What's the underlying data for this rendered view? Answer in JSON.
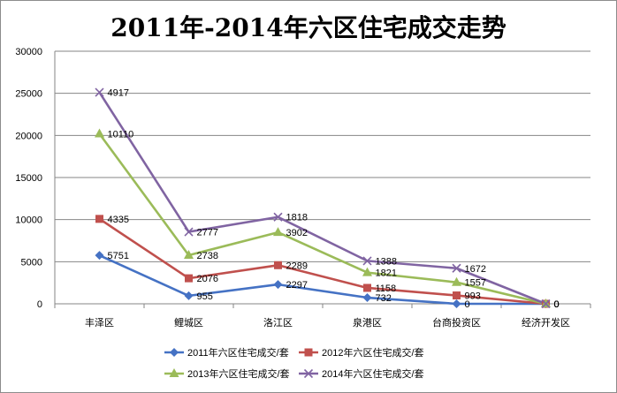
{
  "chart_data": {
    "type": "line",
    "title": "2011年-2014年六区住宅成交走势",
    "categories": [
      "丰泽区",
      "鲤城区",
      "洛江区",
      "泉港区",
      "台商投资区",
      "经济开发区"
    ],
    "stacked": true,
    "ylim": [
      0,
      30000
    ],
    "yticks": [
      0,
      5000,
      10000,
      15000,
      20000,
      25000,
      30000
    ],
    "grid": true,
    "legend_position": "bottom",
    "series": [
      {
        "name": "2011年六区住宅成交/套",
        "color": "#4572c4",
        "marker": "diamond",
        "values": [
          5751,
          955,
          2297,
          732,
          0,
          0
        ],
        "labels": [
          "5751",
          "955",
          "2297",
          "732",
          "0",
          "0"
        ]
      },
      {
        "name": "2012年六区住宅成交/套",
        "color": "#c0504d",
        "marker": "square",
        "values": [
          4335,
          2076,
          2289,
          1158,
          993,
          0
        ],
        "labels": [
          "4335",
          "2076",
          "2289",
          "1158",
          "993",
          "0"
        ]
      },
      {
        "name": "2013年六区住宅成交/套",
        "color": "#9bbb59",
        "marker": "triangle",
        "values": [
          10110,
          2738,
          3902,
          1821,
          1557,
          0
        ],
        "labels": [
          "10110",
          "2738",
          "3902",
          "1821",
          "1557",
          "0"
        ]
      },
      {
        "name": "2014年六区住宅成交/套",
        "color": "#8064a2",
        "marker": "x",
        "values": [
          4917,
          2777,
          1818,
          1388,
          1672,
          0
        ],
        "labels": [
          "4917",
          "2777",
          "1818",
          "1388",
          "1672",
          "0"
        ]
      }
    ]
  }
}
